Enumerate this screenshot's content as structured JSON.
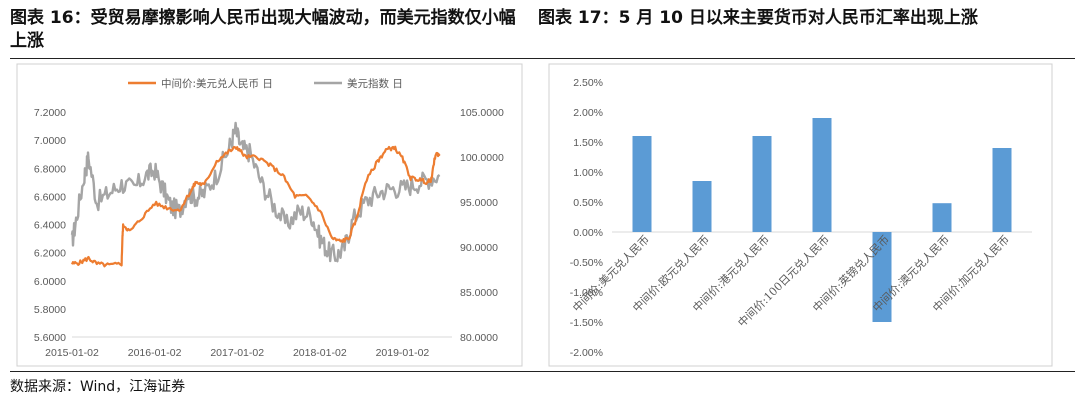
{
  "page": {
    "title_left": "图表 16：受贸易摩擦影响人民币出现大幅波动，而美元指数仅小幅上涨",
    "title_right": "图表 17：5 月 10 日以来主要货币对人民币汇率出现上涨",
    "source": "数据来源：Wind，江海证券"
  },
  "colors": {
    "cny": "#ed7d31",
    "dxy": "#a5a5a5",
    "bar": "#5b9bd5"
  },
  "chart_data": [
    {
      "type": "line",
      "title": "",
      "legend": [
        "中间价:美元兑人民币 日",
        "美元指数 日"
      ],
      "legend_position": "top",
      "x_ticks": [
        "2015-01-02",
        "2016-01-02",
        "2017-01-02",
        "2018-01-02",
        "2019-01-02"
      ],
      "x_range": [
        2015.0,
        2019.6
      ],
      "y_left": {
        "ticks": [
          "5.6000",
          "5.8000",
          "6.0000",
          "6.2000",
          "6.4000",
          "6.6000",
          "6.8000",
          "7.0000",
          "7.2000"
        ],
        "ylim": [
          5.6,
          7.2
        ]
      },
      "y_right": {
        "ticks": [
          "80.0000",
          "85.0000",
          "90.0000",
          "95.0000",
          "100.0000",
          "105.0000"
        ],
        "ylim": [
          80,
          105
        ]
      },
      "series": [
        {
          "name": "中间价:美元兑人民币 日",
          "axis": "left",
          "x": [
            2015.0,
            2015.1,
            2015.2,
            2015.3,
            2015.45,
            2015.6,
            2015.61,
            2015.62,
            2015.7,
            2015.85,
            2016.0,
            2016.15,
            2016.3,
            2016.45,
            2016.5,
            2016.6,
            2016.75,
            2016.9,
            2017.0,
            2017.1,
            2017.25,
            2017.4,
            2017.55,
            2017.7,
            2017.85,
            2018.0,
            2018.15,
            2018.25,
            2018.35,
            2018.45,
            2018.55,
            2018.7,
            2018.8,
            2018.9,
            2019.0,
            2019.1,
            2019.2,
            2019.3,
            2019.35,
            2019.4,
            2019.45
          ],
          "values": [
            6.12,
            6.13,
            6.16,
            6.12,
            6.11,
            6.12,
            6.3,
            6.4,
            6.35,
            6.45,
            6.55,
            6.52,
            6.5,
            6.65,
            6.7,
            6.68,
            6.85,
            6.92,
            6.95,
            6.88,
            6.88,
            6.82,
            6.75,
            6.6,
            6.6,
            6.5,
            6.3,
            6.28,
            6.3,
            6.45,
            6.7,
            6.85,
            6.93,
            6.95,
            6.87,
            6.73,
            6.72,
            6.7,
            6.72,
            6.9,
            6.9
          ]
        },
        {
          "name": "美元指数 日",
          "axis": "right",
          "x": [
            2015.0,
            2015.05,
            2015.15,
            2015.2,
            2015.3,
            2015.45,
            2015.6,
            2015.75,
            2015.9,
            2016.0,
            2016.1,
            2016.2,
            2016.3,
            2016.4,
            2016.5,
            2016.6,
            2016.75,
            2016.9,
            2016.98,
            2017.05,
            2017.15,
            2017.3,
            2017.45,
            2017.6,
            2017.75,
            2017.9,
            2018.0,
            2018.1,
            2018.2,
            2018.3,
            2018.4,
            2018.55,
            2018.7,
            2018.85,
            2019.0,
            2019.15,
            2019.3,
            2019.45
          ],
          "values": [
            90.5,
            93,
            98,
            100,
            95,
            96,
            97,
            96.5,
            98,
            98.5,
            96.5,
            94.5,
            94,
            96,
            95.5,
            96,
            98,
            101,
            103,
            101,
            100.5,
            97,
            94.5,
            92.5,
            94,
            93.5,
            91,
            89.5,
            89,
            90,
            93,
            95,
            96,
            96.5,
            96.5,
            97,
            97.5,
            98
          ]
        }
      ]
    },
    {
      "type": "bar",
      "title": "",
      "categories": [
        "中间价:美元兑人民币",
        "中间价:欧元兑人民币",
        "中间价:港元兑人民币",
        "中间价:100日元兑人民币",
        "中间价:英镑兑人民币",
        "中间价:澳元兑人民币",
        "中间价:加元兑人民币"
      ],
      "values": [
        1.6,
        0.85,
        1.6,
        1.9,
        -1.5,
        0.48,
        1.4
      ],
      "y_ticks": [
        "2.50%",
        "2.00%",
        "1.50%",
        "1.00%",
        "0.50%",
        "0.00%",
        "-0.50%",
        "-1.00%",
        "-1.50%",
        "-2.00%"
      ],
      "ylim": [
        -2.0,
        2.5
      ],
      "xlabel": "",
      "ylabel": ""
    }
  ]
}
